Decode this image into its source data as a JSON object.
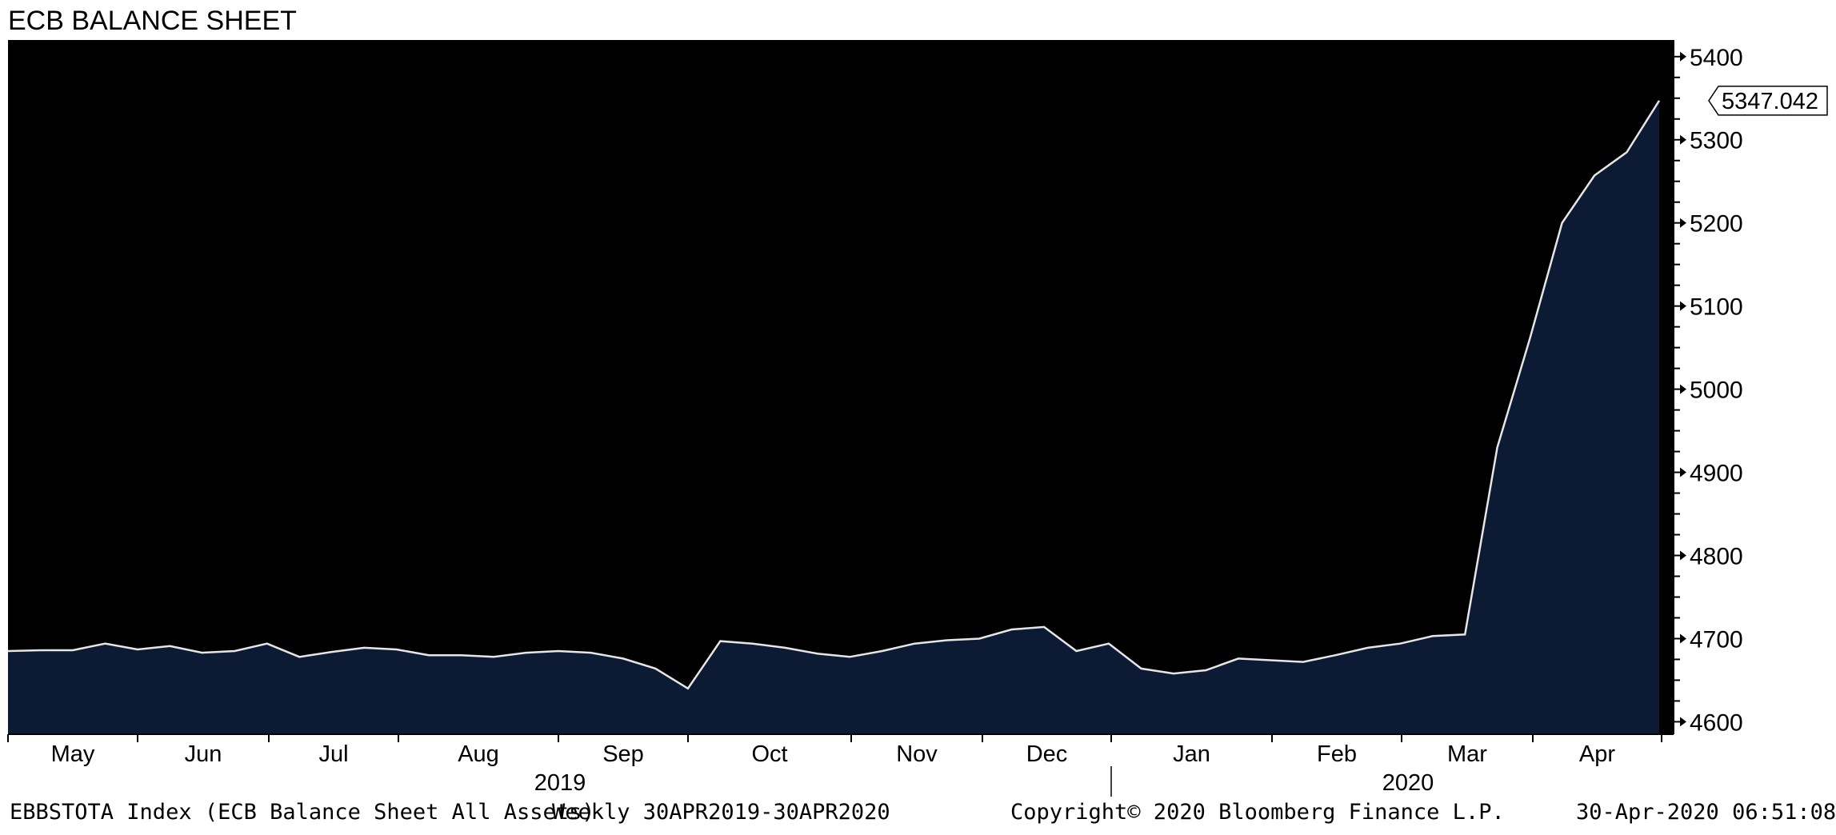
{
  "title": "ECB BALANCE SHEET",
  "footer": {
    "security": "EBBSTOTA Index (ECB Balance Sheet All Assets)",
    "frequency": "Weekly 30APR2019-30APR2020",
    "copyright": "Copyright© 2020 Bloomberg Finance L.P.",
    "timestamp": "30-Apr-2020 06:51:08"
  },
  "colors": {
    "background": "#000000",
    "fill": "#0c1b33",
    "line": "#e6e6e6"
  },
  "chart_data": {
    "type": "area",
    "title": "ECB BALANCE SHEET",
    "xlabel": "",
    "ylabel": "",
    "ylim": [
      4585,
      5420
    ],
    "yticks": [
      4600,
      4700,
      4800,
      4900,
      5000,
      5100,
      5200,
      5300,
      5400
    ],
    "month_labels": [
      "May",
      "Jun",
      "Jul",
      "Aug",
      "Sep",
      "Oct",
      "Nov",
      "Dec",
      "Jan",
      "Feb",
      "Mar",
      "Apr"
    ],
    "year_labels": [
      "2019",
      "2020"
    ],
    "last_value_label": "5347.042",
    "grid": false,
    "series": [
      {
        "values": [
          4685,
          4686,
          4686,
          4694,
          4687,
          4691,
          4683,
          4685,
          4694,
          4678,
          4684,
          4689,
          4687,
          4680,
          4680,
          4678,
          4683,
          4685,
          4683,
          4676,
          4664,
          4640,
          4697,
          4694,
          4689,
          4682,
          4678,
          4685,
          4694,
          4698,
          4700,
          4711,
          4714,
          4685,
          4694,
          4664,
          4658,
          4662,
          4676,
          4674,
          4672,
          4680,
          4689,
          4694,
          4703,
          4705,
          4930,
          5060,
          5200,
          5257,
          5285,
          5347.042
        ]
      }
    ]
  }
}
